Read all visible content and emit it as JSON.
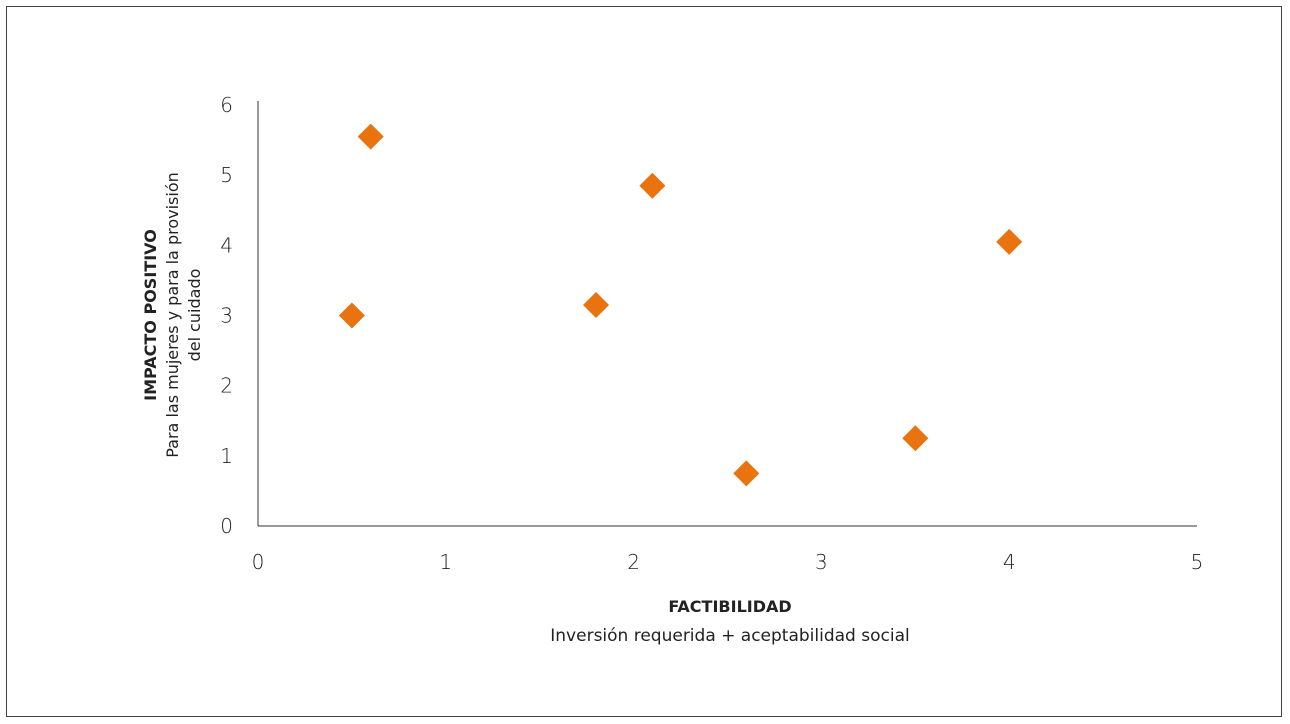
{
  "chart_data": {
    "type": "scatter",
    "points": [
      {
        "x": 0.5,
        "y": 3.0
      },
      {
        "x": 0.6,
        "y": 5.55
      },
      {
        "x": 1.8,
        "y": 3.15
      },
      {
        "x": 2.1,
        "y": 4.85
      },
      {
        "x": 2.6,
        "y": 0.75
      },
      {
        "x": 3.5,
        "y": 1.25
      },
      {
        "x": 4.0,
        "y": 4.05
      }
    ],
    "xlim": [
      0,
      5
    ],
    "ylim": [
      0,
      6
    ],
    "xticks": [
      "0",
      "1",
      "2",
      "3",
      "4",
      "5"
    ],
    "yticks": [
      "0",
      "1",
      "2",
      "3",
      "4",
      "5",
      "6"
    ],
    "xlabel": "FACTIBILIDAD",
    "xlabel_sub": "Inversión requerida + aceptabilidad social",
    "ylabel": "IMPACTO POSITIVO",
    "ylabel_sub_1": "Para las mujeres y para la provisión",
    "ylabel_sub_2": "del cuidado",
    "marker_color": "#E8730F",
    "axis_color": "#333333",
    "grid": false,
    "legend": "none"
  }
}
